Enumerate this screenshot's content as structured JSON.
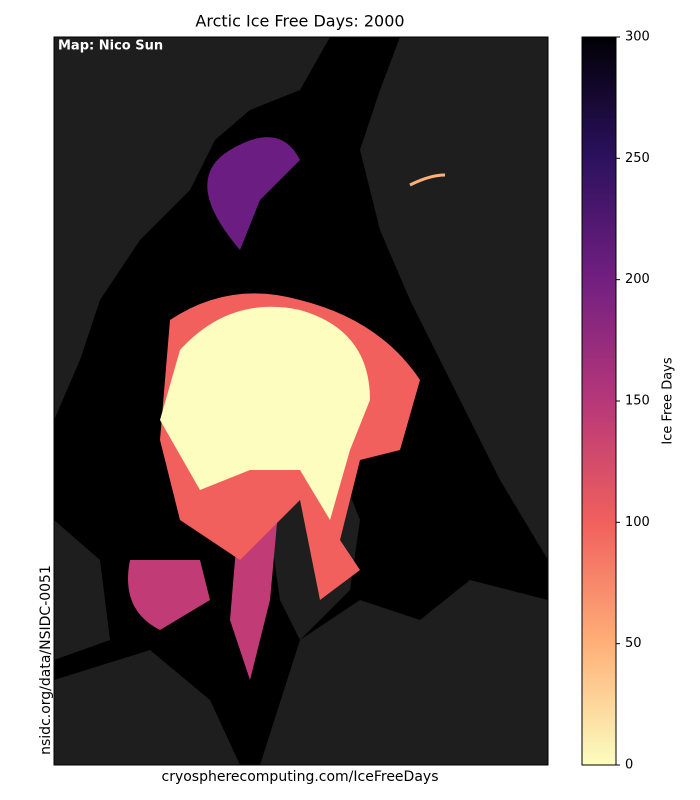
{
  "title": "Arctic Ice Free Days: 2000",
  "credit": "Map: Nico Sun",
  "source": "nsidc.org/data/NSIDC-0051",
  "url": "cryospherecomputing.com/IceFreeDays",
  "colorbar": {
    "label": "Ice Free Days",
    "clim": [
      0,
      300
    ],
    "ticks": [
      0,
      50,
      100,
      150,
      200,
      250,
      300
    ],
    "colormap": "magma_r",
    "colors": [
      "#fcfdbf",
      "#feb078",
      "#f1605d",
      "#b73779",
      "#721f81",
      "#2c115f",
      "#000004"
    ]
  }
}
